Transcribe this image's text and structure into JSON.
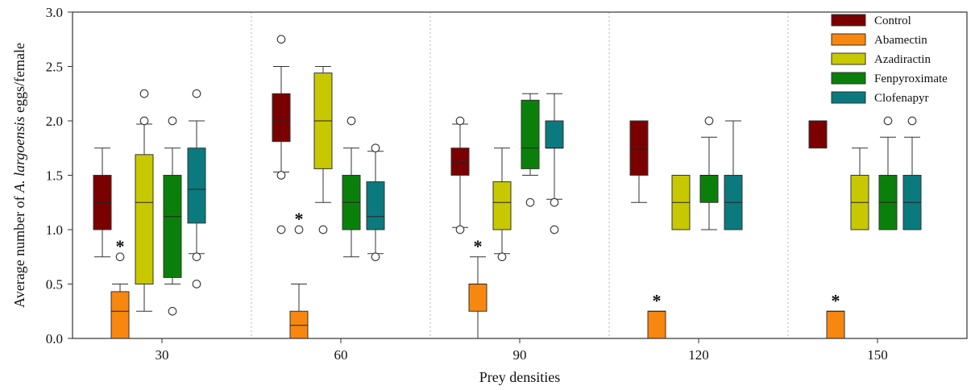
{
  "chart_data": {
    "type": "box",
    "xlabel": "Prey densities",
    "ylabel_parts": [
      "Average number of ",
      "A. largoensis",
      " eggs/female"
    ],
    "ylim": [
      0,
      3.0
    ],
    "yticks": [
      "0.0",
      "0.5",
      "1.0",
      "1.5",
      "2.0",
      "2.5",
      "3.0"
    ],
    "categories": [
      "30",
      "60",
      "90",
      "120",
      "150"
    ],
    "grid": "vertical dotted separators between density groups",
    "legend_placement": "top-right",
    "significance_marker": "*",
    "series": [
      {
        "name": "Control",
        "color": "#7a0000",
        "boxes": [
          {
            "min": 0.75,
            "q1": 1.0,
            "median": 1.25,
            "q3": 1.5,
            "max": 1.75,
            "outliers": []
          },
          {
            "min": 1.53,
            "q1": 1.81,
            "median": 2.0,
            "q3": 2.25,
            "max": 2.5,
            "outliers": [
              2.75,
              1.5,
              1.0
            ]
          },
          {
            "min": 1.02,
            "q1": 1.5,
            "median": 1.62,
            "q3": 1.75,
            "max": 1.97,
            "outliers": [
              2.0,
              1.0
            ]
          },
          {
            "min": 1.25,
            "q1": 1.5,
            "median": 1.75,
            "q3": 2.0,
            "max": 2.0,
            "outliers": []
          },
          {
            "min": 1.75,
            "q1": 1.75,
            "median": 2.0,
            "q3": 2.0,
            "max": 2.0,
            "outliers": []
          }
        ]
      },
      {
        "name": "Abamectin",
        "color": "#f7870f",
        "boxes": [
          {
            "min": 0.0,
            "q1": 0.0,
            "median": 0.25,
            "q3": 0.43,
            "max": 0.5,
            "outliers": [
              0.75
            ],
            "star": true
          },
          {
            "min": 0.0,
            "q1": 0.0,
            "median": 0.12,
            "q3": 0.25,
            "max": 0.5,
            "outliers": [
              1.0
            ],
            "star": true
          },
          {
            "min": 0.0,
            "q1": 0.25,
            "median": 0.5,
            "q3": 0.5,
            "max": 0.75,
            "outliers": [],
            "star": true
          },
          {
            "min": 0.0,
            "q1": 0.0,
            "median": 0.25,
            "q3": 0.25,
            "max": 0.25,
            "outliers": [],
            "star": true
          },
          {
            "min": 0.0,
            "q1": 0.0,
            "median": 0.25,
            "q3": 0.25,
            "max": 0.25,
            "outliers": [],
            "star": true
          }
        ]
      },
      {
        "name": "Azadiractin",
        "color": "#c8c800",
        "boxes": [
          {
            "min": 0.25,
            "q1": 0.5,
            "median": 1.25,
            "q3": 1.69,
            "max": 1.97,
            "outliers": [
              2.25,
              2.0
            ]
          },
          {
            "min": 1.25,
            "q1": 1.56,
            "median": 2.0,
            "q3": 2.44,
            "max": 2.5,
            "outliers": [
              1.0
            ]
          },
          {
            "min": 0.78,
            "q1": 1.0,
            "median": 1.25,
            "q3": 1.44,
            "max": 1.75,
            "outliers": [
              0.75
            ]
          },
          {
            "min": 1.0,
            "q1": 1.0,
            "median": 1.25,
            "q3": 1.5,
            "max": 1.5,
            "outliers": []
          },
          {
            "min": 1.0,
            "q1": 1.0,
            "median": 1.25,
            "q3": 1.5,
            "max": 1.75,
            "outliers": []
          }
        ]
      },
      {
        "name": "Fenpyroximate",
        "color": "#0a800a",
        "boxes": [
          {
            "min": 0.5,
            "q1": 0.56,
            "median": 1.12,
            "q3": 1.5,
            "max": 1.75,
            "outliers": [
              2.0,
              0.25
            ]
          },
          {
            "min": 0.75,
            "q1": 1.0,
            "median": 1.25,
            "q3": 1.5,
            "max": 1.75,
            "outliers": [
              2.0
            ]
          },
          {
            "min": 1.5,
            "q1": 1.56,
            "median": 1.75,
            "q3": 2.19,
            "max": 2.25,
            "outliers": [
              1.25
            ]
          },
          {
            "min": 1.0,
            "q1": 1.25,
            "median": 1.5,
            "q3": 1.5,
            "max": 1.85,
            "outliers": [
              2.0
            ]
          },
          {
            "min": 1.0,
            "q1": 1.0,
            "median": 1.25,
            "q3": 1.5,
            "max": 1.85,
            "outliers": [
              2.0
            ]
          }
        ]
      },
      {
        "name": "Clofenapyr",
        "color": "#0a7a7f",
        "boxes": [
          {
            "min": 0.78,
            "q1": 1.06,
            "median": 1.37,
            "q3": 1.75,
            "max": 2.0,
            "outliers": [
              2.25,
              0.75,
              0.5
            ]
          },
          {
            "min": 0.78,
            "q1": 1.0,
            "median": 1.12,
            "q3": 1.44,
            "max": 1.72,
            "outliers": [
              1.75,
              0.75
            ]
          },
          {
            "min": 1.28,
            "q1": 1.75,
            "median": 1.75,
            "q3": 2.0,
            "max": 2.25,
            "outliers": [
              1.25,
              1.0
            ]
          },
          {
            "min": 1.0,
            "q1": 1.0,
            "median": 1.25,
            "q3": 1.5,
            "max": 2.0,
            "outliers": []
          },
          {
            "min": 1.0,
            "q1": 1.0,
            "median": 1.25,
            "q3": 1.5,
            "max": 1.85,
            "outliers": [
              2.0
            ]
          }
        ]
      }
    ]
  }
}
